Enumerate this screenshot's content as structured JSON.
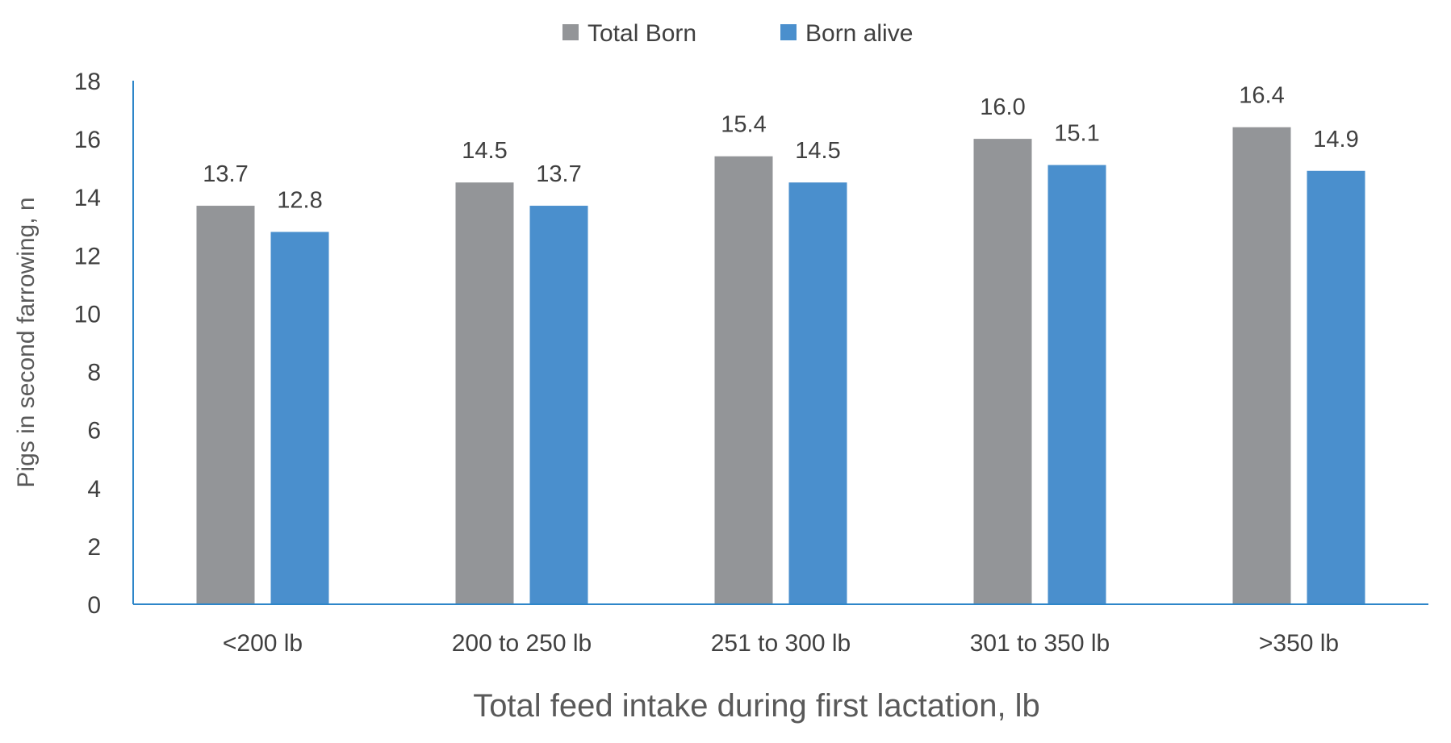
{
  "chart_data": {
    "type": "bar",
    "title": "",
    "xlabel": "Total feed intake during first lactation, lb",
    "ylabel": "Pigs in  second farrowing, n",
    "categories": [
      "<200 lb",
      "200 to 250 lb",
      "251 to 300 lb",
      "301 to 350 lb",
      ">350 lb"
    ],
    "series": [
      {
        "name": "Total Born",
        "values": [
          13.7,
          14.5,
          15.4,
          16.0,
          16.4
        ],
        "labels": [
          "13.7",
          "14.5",
          "15.4",
          "16.0",
          "16.4"
        ],
        "color": "#939598"
      },
      {
        "name": "Born alive",
        "values": [
          12.8,
          13.7,
          14.5,
          15.1,
          14.9
        ],
        "labels": [
          "12.8",
          "13.7",
          "14.5",
          "15.1",
          "14.9"
        ],
        "color": "#4a8fcd"
      }
    ],
    "ylim": [
      0,
      18
    ],
    "yticks": [
      "0",
      "2",
      "4",
      "6",
      "8",
      "10",
      "12",
      "14",
      "16",
      "18"
    ],
    "grid": false,
    "legend_position": "top-center",
    "axis_color": "#2e86c9"
  }
}
